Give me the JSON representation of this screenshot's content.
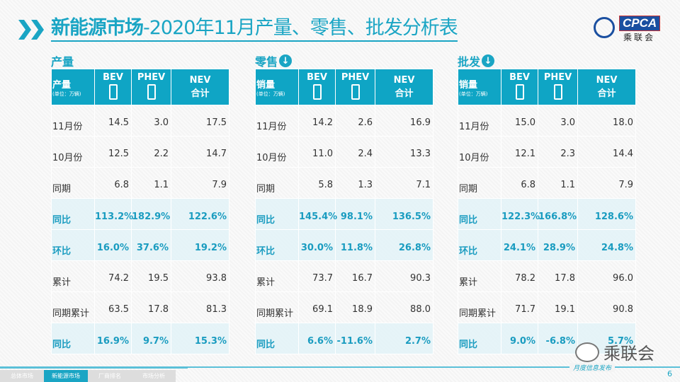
{
  "title": {
    "bold": "新能源市场",
    "rest": "-2020年11月产量、零售、批发分析表"
  },
  "logo": {
    "text": "CPCA",
    "cn": "乘联会"
  },
  "col_headers": {
    "bev": "BEV",
    "phev": "PHEV",
    "nev": "NEV",
    "nev_sub": "合计",
    "unit": "(单位：万辆)"
  },
  "tables": [
    {
      "section": "产量",
      "label": "产量",
      "has_arrow": false,
      "rows": [
        [
          "11月份",
          "14.5",
          "3.0",
          "17.5",
          false
        ],
        [
          "10月份",
          "12.5",
          "2.2",
          "14.7",
          false
        ],
        [
          "同期",
          "6.8",
          "1.1",
          "7.9",
          false
        ],
        [
          "同比",
          "113.2%",
          "182.9%",
          "122.6%",
          true
        ],
        [
          "环比",
          "16.0%",
          "37.6%",
          "19.2%",
          true
        ],
        [
          "累计",
          "74.2",
          "19.5",
          "93.8",
          false
        ],
        [
          "同期累计",
          "63.5",
          "17.8",
          "81.3",
          false
        ],
        [
          "同比",
          "16.9%",
          "9.7%",
          "15.3%",
          true
        ]
      ]
    },
    {
      "section": "零售",
      "label": "销量",
      "has_arrow": true,
      "rows": [
        [
          "11月份",
          "14.2",
          "2.6",
          "16.9",
          false
        ],
        [
          "10月份",
          "11.0",
          "2.4",
          "13.3",
          false
        ],
        [
          "同期",
          "5.8",
          "1.3",
          "7.1",
          false
        ],
        [
          "同比",
          "145.4%",
          "98.1%",
          "136.5%",
          true
        ],
        [
          "环比",
          "30.0%",
          "11.8%",
          "26.8%",
          true
        ],
        [
          "累计",
          "73.7",
          "16.7",
          "90.3",
          false
        ],
        [
          "同期累计",
          "69.1",
          "18.9",
          "88.0",
          false
        ],
        [
          "同比",
          "6.6%",
          "-11.6%",
          "2.7%",
          true
        ]
      ]
    },
    {
      "section": "批发",
      "label": "销量",
      "has_arrow": true,
      "rows": [
        [
          "11月份",
          "15.0",
          "3.0",
          "18.0",
          false
        ],
        [
          "10月份",
          "12.1",
          "2.3",
          "14.4",
          false
        ],
        [
          "同期",
          "6.8",
          "1.1",
          "7.9",
          false
        ],
        [
          "同比",
          "122.3%",
          "166.8%",
          "128.6%",
          true
        ],
        [
          "环比",
          "24.1%",
          "28.9%",
          "24.8%",
          true
        ],
        [
          "累计",
          "78.2",
          "17.8",
          "96.0",
          false
        ],
        [
          "同期累计",
          "71.7",
          "19.1",
          "90.8",
          false
        ],
        [
          "同比",
          "9.0%",
          "-6.8%",
          "5.7%",
          true
        ]
      ]
    }
  ],
  "footer": {
    "nav": [
      "总体市场",
      "新能源市场",
      "厂商排名",
      "市场分析"
    ],
    "active": 1,
    "monthly": "月度信息发布",
    "page": "6",
    "wechat": "乘联会"
  },
  "colors": {
    "accent": "#1aa5c4",
    "header_bg": "#0fa5c5"
  }
}
